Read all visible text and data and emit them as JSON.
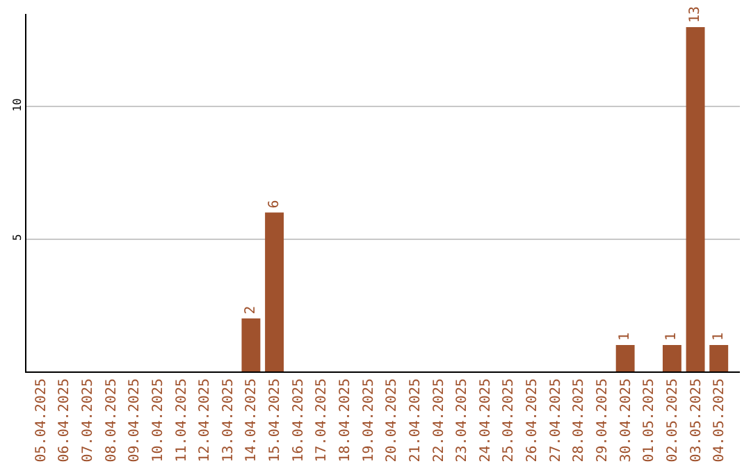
{
  "chart_data": {
    "type": "bar",
    "categories": [
      "05.04.2025",
      "06.04.2025",
      "07.04.2025",
      "08.04.2025",
      "09.04.2025",
      "10.04.2025",
      "11.04.2025",
      "12.04.2025",
      "13.04.2025",
      "14.04.2025",
      "15.04.2025",
      "16.04.2025",
      "17.04.2025",
      "18.04.2025",
      "19.04.2025",
      "20.04.2025",
      "21.04.2025",
      "22.04.2025",
      "23.04.2025",
      "24.04.2025",
      "25.04.2025",
      "26.04.2025",
      "27.04.2025",
      "28.04.2025",
      "29.04.2025",
      "30.04.2025",
      "01.05.2025",
      "02.05.2025",
      "03.05.2025",
      "04.05.2025"
    ],
    "values": [
      0,
      0,
      0,
      0,
      0,
      0,
      0,
      0,
      0,
      2,
      6,
      0,
      0,
      0,
      0,
      0,
      0,
      0,
      0,
      0,
      0,
      0,
      0,
      0,
      0,
      1,
      0,
      1,
      13,
      1
    ],
    "value_labels": [
      null,
      null,
      null,
      null,
      null,
      null,
      null,
      null,
      null,
      "2",
      "6",
      null,
      null,
      null,
      null,
      null,
      null,
      null,
      null,
      null,
      null,
      null,
      null,
      null,
      null,
      "1",
      null,
      "1",
      "13",
      "1"
    ],
    "color": "#a0522d",
    "ylim": [
      0,
      13.5
    ],
    "yticks": [
      5,
      10
    ],
    "grid": "y",
    "legend": false
  }
}
